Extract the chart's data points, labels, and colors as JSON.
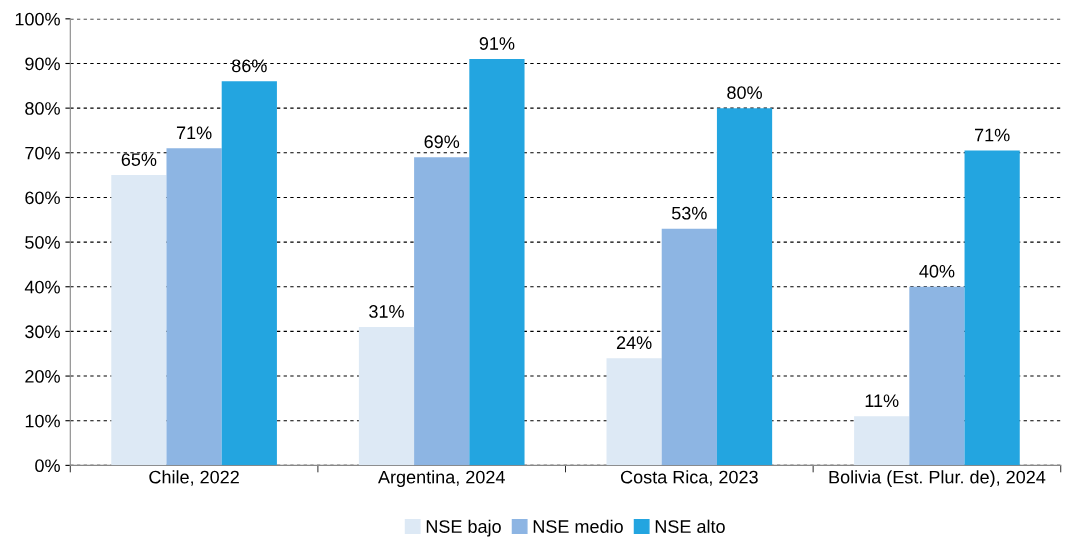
{
  "chart_data": {
    "type": "bar",
    "categories": [
      "Chile, 2022",
      "Argentina, 2024",
      "Costa Rica, 2023",
      "Bolivia (Est. Plur. de), 2024"
    ],
    "series": [
      {
        "name": "NSE bajo",
        "color": "#dde9f5",
        "values": [
          65,
          31,
          24,
          11
        ],
        "value_labels": [
          "65%",
          "31%",
          "24%",
          "11%"
        ]
      },
      {
        "name": "NSE medio",
        "color": "#8db5e3",
        "values": [
          71,
          69,
          53,
          40
        ],
        "value_labels": [
          "71%",
          "69%",
          "53%",
          "40%"
        ]
      },
      {
        "name": "NSE alto",
        "color": "#23a5e0",
        "values": [
          86,
          91,
          80,
          70.5
        ],
        "value_labels": [
          "86%",
          "91%",
          "80%",
          "71%"
        ]
      }
    ],
    "ylim": [
      0,
      100
    ],
    "yticks": [
      {
        "value": 0,
        "label": "0%"
      },
      {
        "value": 10,
        "label": "10%"
      },
      {
        "value": 20,
        "label": "20%"
      },
      {
        "value": 30,
        "label": "30%"
      },
      {
        "value": 40,
        "label": "40%"
      },
      {
        "value": 50,
        "label": "50%"
      },
      {
        "value": 60,
        "label": "60%"
      },
      {
        "value": 70,
        "label": "70%"
      },
      {
        "value": 80,
        "label": "80%"
      },
      {
        "value": 90,
        "label": "90%"
      },
      {
        "value": 100,
        "label": "100%"
      }
    ],
    "grid": "y",
    "legend": "bottom"
  }
}
